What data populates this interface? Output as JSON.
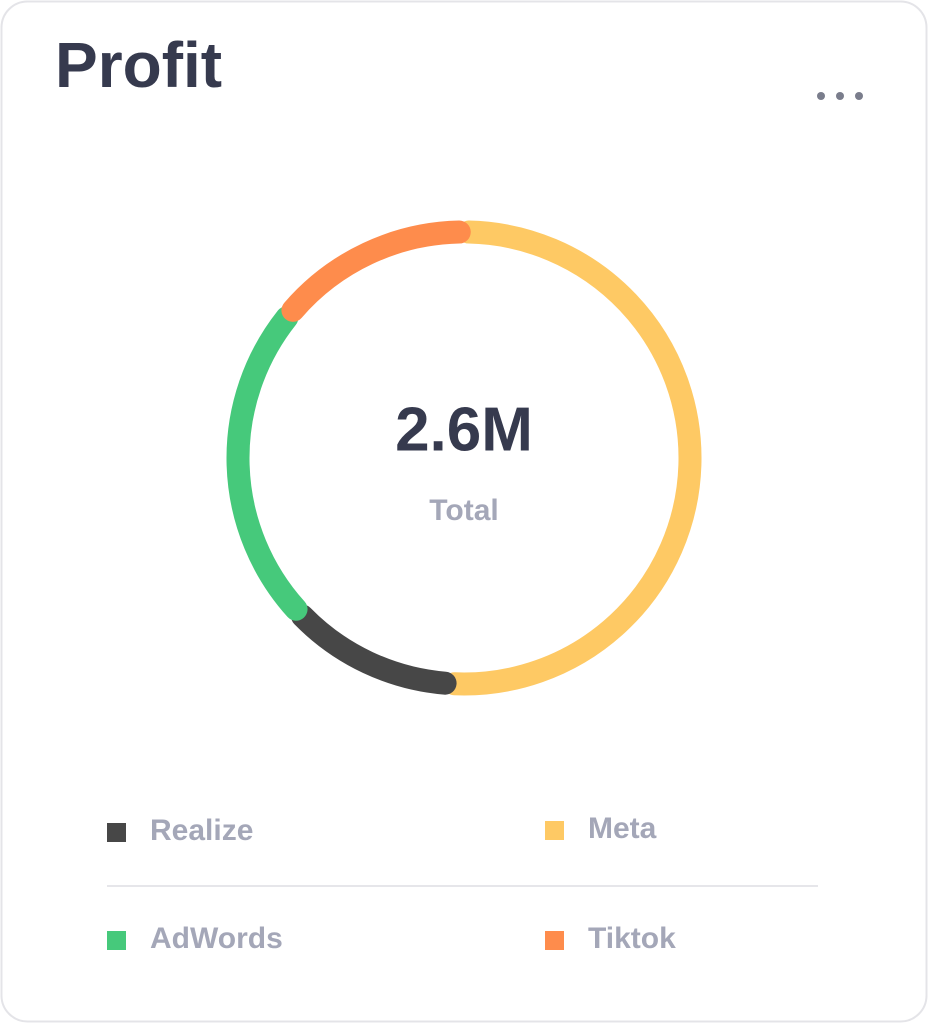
{
  "chart_data": {
    "type": "donut",
    "title": "Profit",
    "center_value": "2.6M",
    "center_label": "Total",
    "categories": [
      "Realize",
      "Meta",
      "AdWords",
      "Tiktok"
    ],
    "values": [
      12,
      51,
      23,
      14
    ],
    "colors": [
      "#474747",
      "#fec964",
      "#46c97b",
      "#fe8c4c"
    ]
  }
}
